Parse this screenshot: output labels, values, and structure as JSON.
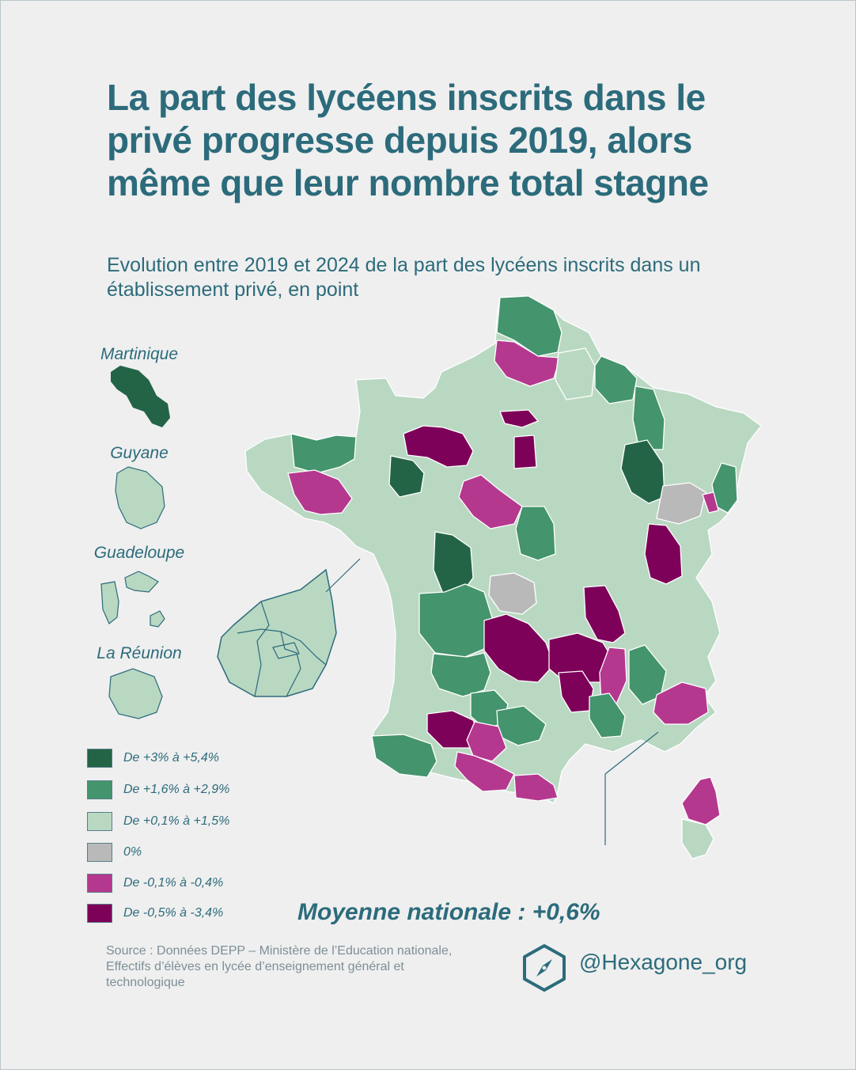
{
  "title": "La part des lycéens inscrits dans le privé progresse depuis 2019, alors même que leur nombre total stagne",
  "subtitle": "Evolution entre 2019 et 2024 de la part des lycéens inscrits dans un établissement privé, en point",
  "overseas": {
    "martinique": "Martinique",
    "guyane": "Guyane",
    "guadeloupe": "Guadeloupe",
    "reunion": "La Réunion"
  },
  "legend": [
    {
      "label": "De +3% à +5,4%",
      "color": "#236447"
    },
    {
      "label": "De +1,6% à +2,9%",
      "color": "#44946d"
    },
    {
      "label": "De +0,1% à +1,5%",
      "color": "#b9d8c2"
    },
    {
      "label": "0%",
      "color": "#b9b9b9"
    },
    {
      "label": "De -0,1% à -0,4%",
      "color": "#b5388f"
    },
    {
      "label": "De -0,5% à -3,4%",
      "color": "#7d0059"
    }
  ],
  "average": "Moyenne nationale : +0,6%",
  "source": "Source : Données DEPP – Ministère de l’Education nationale, Effectifs d’élèves en lycée d’enseignement général et technologique",
  "brand": {
    "handle": "@Hexagone_org",
    "icon": "compass-hexagon-icon"
  }
}
